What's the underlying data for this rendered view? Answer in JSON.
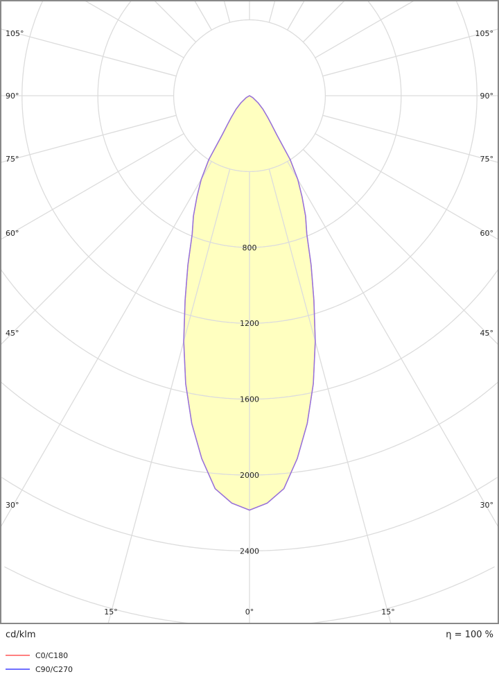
{
  "chart_data": {
    "type": "polar",
    "unit_label": "cd/klm",
    "efficiency_label": "η = 100 %",
    "angle_labels": [
      "105°",
      "90°",
      "75°",
      "60°",
      "45°",
      "30°",
      "15°",
      "0°"
    ],
    "radial_tick_labels": [
      "800",
      "1200",
      "1600",
      "2000",
      "2400"
    ],
    "radial_rings": [
      400,
      800,
      1200,
      1600,
      2000,
      2400,
      2800,
      3200,
      3600
    ],
    "radial_spokes_step_deg": 15,
    "grid": true,
    "legend_position": "bottom-left",
    "fill_color": "#ffffc0",
    "gamma_deg": [
      0,
      2.5,
      5,
      7.5,
      10,
      12.5,
      15,
      17.5,
      20,
      22.5,
      25,
      27.5,
      30,
      32.5,
      35,
      37.5,
      40,
      45,
      50,
      60,
      90
    ],
    "series": [
      {
        "name": "C0/C180",
        "color": "#ff7f7f",
        "values": [
          2185,
          2150,
          2080,
          1930,
          1755,
          1555,
          1340,
          1130,
          950,
          790,
          700,
          600,
          510,
          400,
          250,
          190,
          150,
          100,
          60,
          20,
          0
        ]
      },
      {
        "name": "C90/C270",
        "color": "#6f6fff",
        "values": [
          2185,
          2150,
          2080,
          1930,
          1755,
          1555,
          1340,
          1130,
          950,
          790,
          700,
          600,
          510,
          400,
          250,
          190,
          150,
          100,
          60,
          20,
          0
        ]
      }
    ]
  }
}
